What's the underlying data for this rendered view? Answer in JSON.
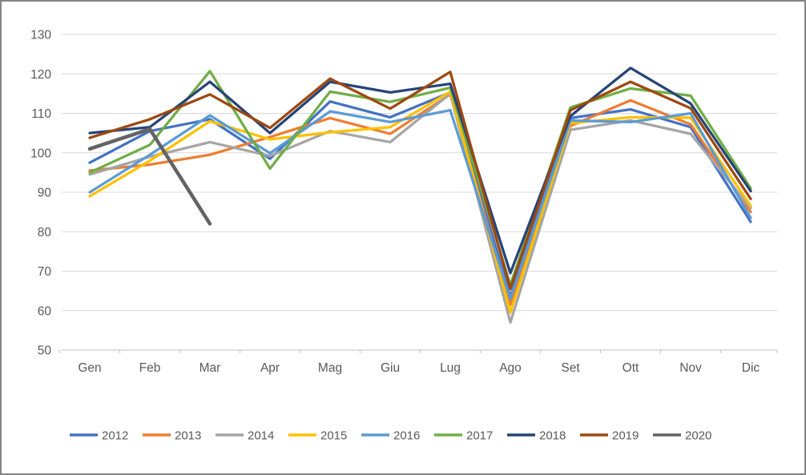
{
  "chart_data": {
    "type": "line",
    "title": "",
    "xlabel": "",
    "ylabel": "",
    "x_categories": [
      "Gen",
      "Feb",
      "Mar",
      "Apr",
      "Mag",
      "Giu",
      "Lug",
      "Ago",
      "Set",
      "Ott",
      "Nov",
      "Dic"
    ],
    "y_axis": {
      "min": 50,
      "max": 130,
      "tick_step": 10,
      "tick_labels": [
        "50",
        "60",
        "70",
        "80",
        "90",
        "100",
        "110",
        "120",
        "130"
      ]
    },
    "grid": true,
    "legend_position": "bottom",
    "series": [
      {
        "name": "2012",
        "color": "#4472C4",
        "values": [
          97.5,
          105.5,
          108.5,
          98.5,
          113,
          109,
          115.3,
          63.5,
          108.8,
          111,
          106.5,
          82.5
        ]
      },
      {
        "name": "2013",
        "color": "#ED7D31",
        "values": [
          95.5,
          97,
          99.5,
          104,
          108.8,
          104.8,
          114.8,
          61.5,
          106.8,
          113.3,
          107.2,
          85
        ]
      },
      {
        "name": "2014",
        "color": "#A5A5A5",
        "values": [
          94.5,
          99,
          102.7,
          99.2,
          105.5,
          102.7,
          115,
          57,
          105.8,
          108.2,
          104.8,
          86
        ]
      },
      {
        "name": "2015",
        "color": "#FFC000",
        "values": [
          89,
          98,
          108,
          103.4,
          105.2,
          106.5,
          115.5,
          59.5,
          107.5,
          109,
          108.9,
          86.5
        ]
      },
      {
        "name": "2016",
        "color": "#5B9BD5",
        "values": [
          90,
          99.5,
          109.5,
          99.9,
          110.5,
          107.8,
          110.8,
          63,
          108.2,
          107.8,
          110,
          83.5
        ]
      },
      {
        "name": "2017",
        "color": "#70AD47",
        "values": [
          95,
          102,
          120.7,
          96,
          115.5,
          112.9,
          116.5,
          66.5,
          111.5,
          116.3,
          114.5,
          91
        ]
      },
      {
        "name": "2018",
        "color": "#264478",
        "values": [
          105,
          106.5,
          118,
          105,
          118,
          115.3,
          117.5,
          69.5,
          109.3,
          121.5,
          112.5,
          90.3
        ]
      },
      {
        "name": "2019",
        "color": "#9E480E",
        "values": [
          103.8,
          108.5,
          114.8,
          106.3,
          118.8,
          111.2,
          120.5,
          65.5,
          110.8,
          118,
          111.3,
          88.3
        ]
      },
      {
        "name": "2020",
        "color": "#636363",
        "line_width": 4.5,
        "values": [
          101,
          106,
          82,
          null,
          null,
          null,
          null,
          null,
          null,
          null,
          null,
          null
        ]
      }
    ]
  },
  "colors": {
    "background": "#FFFFFF",
    "frame_border": "#848484",
    "gridline": "#D9D9D9",
    "axis_line": "#BFBFBF",
    "tick_text": "#595959"
  }
}
